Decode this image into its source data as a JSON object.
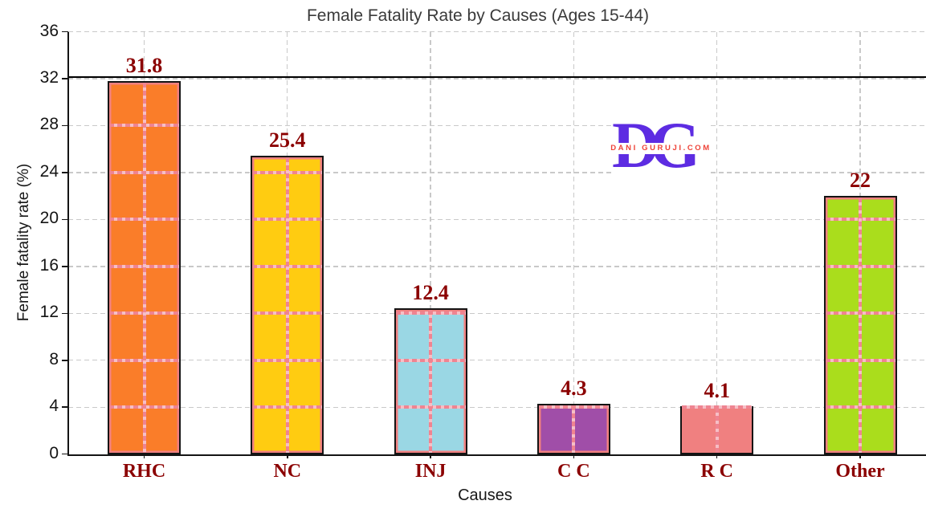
{
  "chart_data": {
    "type": "bar",
    "title": "Female Fatality Rate by Causes (Ages 15-44)",
    "xlabel": "Causes",
    "ylabel": "Female fatality rate (%)",
    "categories": [
      "RHC",
      "NC",
      "INJ",
      "C C",
      "R C",
      "Other"
    ],
    "values": [
      31.8,
      25.4,
      12.4,
      4.3,
      4.1,
      22
    ],
    "value_labels": [
      "31.8",
      "25.4",
      "12.4",
      "4.3",
      "4.1",
      "22"
    ],
    "bar_colors": [
      "#fa7d29",
      "#ffcc11",
      "#9ad7e4",
      "#a04ea8",
      "#f08080",
      "#aadd1c"
    ],
    "bar_edge_color": "#141414",
    "inner_border_color": "#f08080",
    "overlay_gridline_color": "#ef8491",
    "grid_color": "#c9c9c9",
    "label_color": "#8b0000",
    "yticks": [
      0,
      4,
      8,
      12,
      16,
      20,
      24,
      28,
      32,
      36
    ],
    "ylim": [
      0,
      36
    ],
    "grid": true,
    "legend": false,
    "reference_line": {
      "y": 32.15,
      "color": "#000000"
    }
  },
  "watermark": {
    "letter_d": "D",
    "letter_g": "G",
    "text": "DANI GURUJI.COM",
    "letters_color": "#5d2ce2",
    "text_color": "#ee4237"
  }
}
